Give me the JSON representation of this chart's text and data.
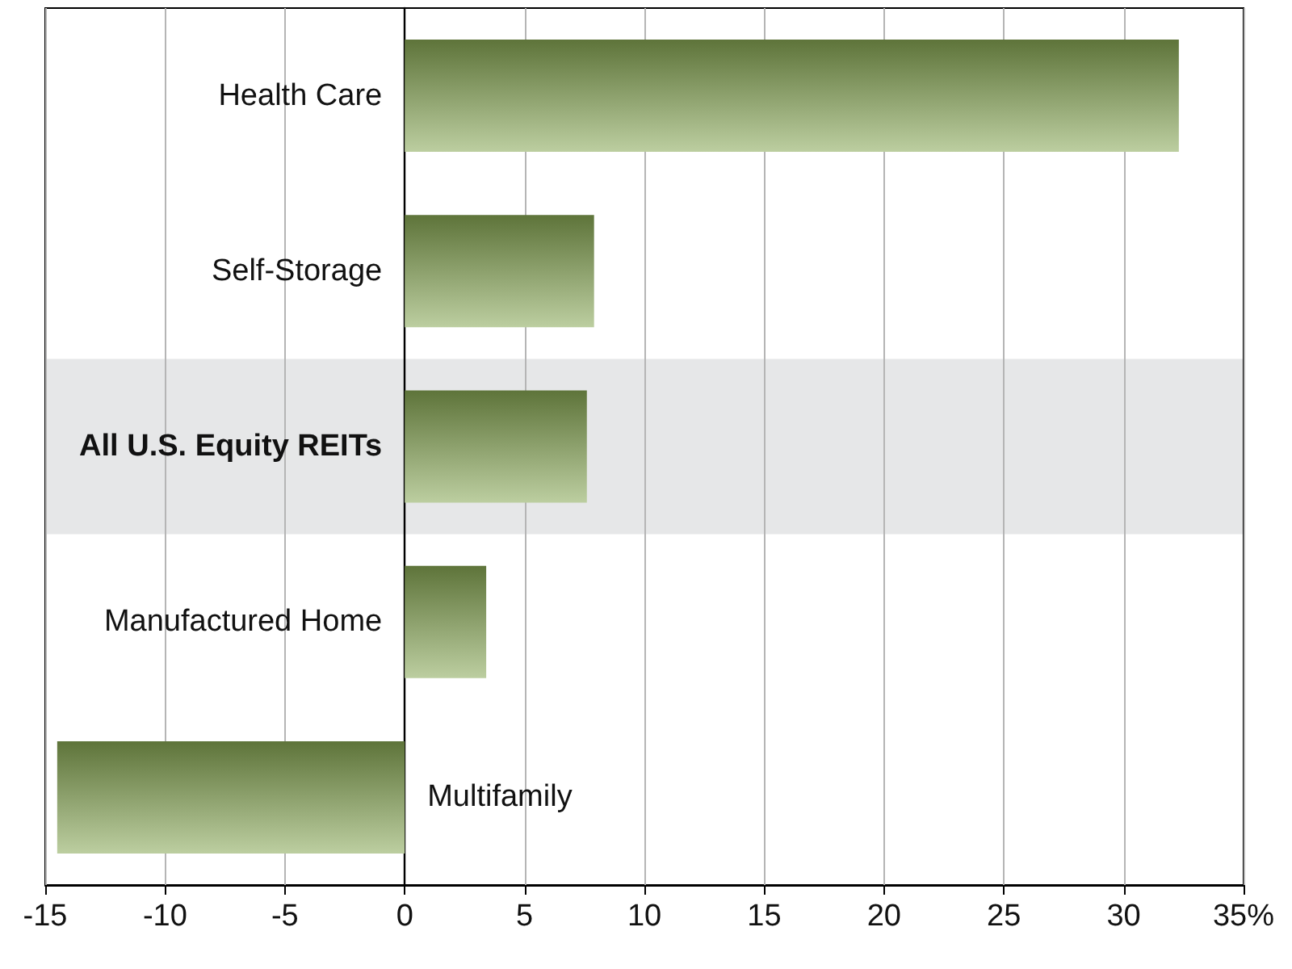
{
  "chart_data": {
    "type": "bar",
    "orientation": "horizontal",
    "categories": [
      "Health Care",
      "Self-Storage",
      "All U.S. Equity REITs",
      "Manufactured Home",
      "Multifamily"
    ],
    "values": [
      32.3,
      7.9,
      7.6,
      3.4,
      -14.5
    ],
    "color": "#86a653",
    "xlim": [
      -15,
      35
    ],
    "xticks": [
      -15,
      -10,
      -5,
      0,
      5,
      10,
      15,
      20,
      25,
      30,
      {
        "value": 35,
        "label": "35%"
      }
    ],
    "grid": "x",
    "bands": [
      {
        "axis": "y",
        "from": "All U.S. Equity REITs",
        "to": "All U.S. Equity REITs",
        "color": "#e6e7e8"
      }
    ]
  }
}
